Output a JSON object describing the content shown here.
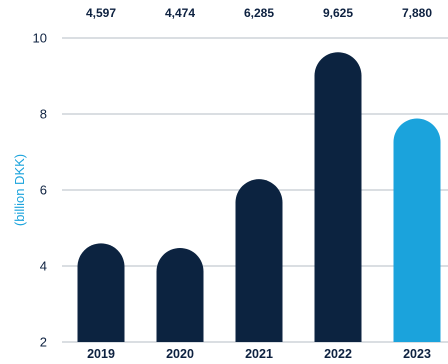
{
  "chart_data": {
    "type": "bar",
    "categories": [
      "2019",
      "2020",
      "2021",
      "2022",
      "2023"
    ],
    "values": [
      4.597,
      4.474,
      6.285,
      9.625,
      7.88
    ],
    "value_labels": [
      "4,597",
      "4,474",
      "6,285",
      "9,625",
      "7,880"
    ],
    "ylabel": "(billion DKK)",
    "ylim": [
      2,
      10
    ],
    "yticks": [
      2,
      4,
      6,
      8,
      10
    ],
    "grid": true,
    "colors": {
      "default_bar": "#0c2340",
      "highlight_bar": "#1ba3dc",
      "ylabel": "#1ba3dc",
      "text": "#0d2140"
    },
    "highlight_index": 4
  }
}
